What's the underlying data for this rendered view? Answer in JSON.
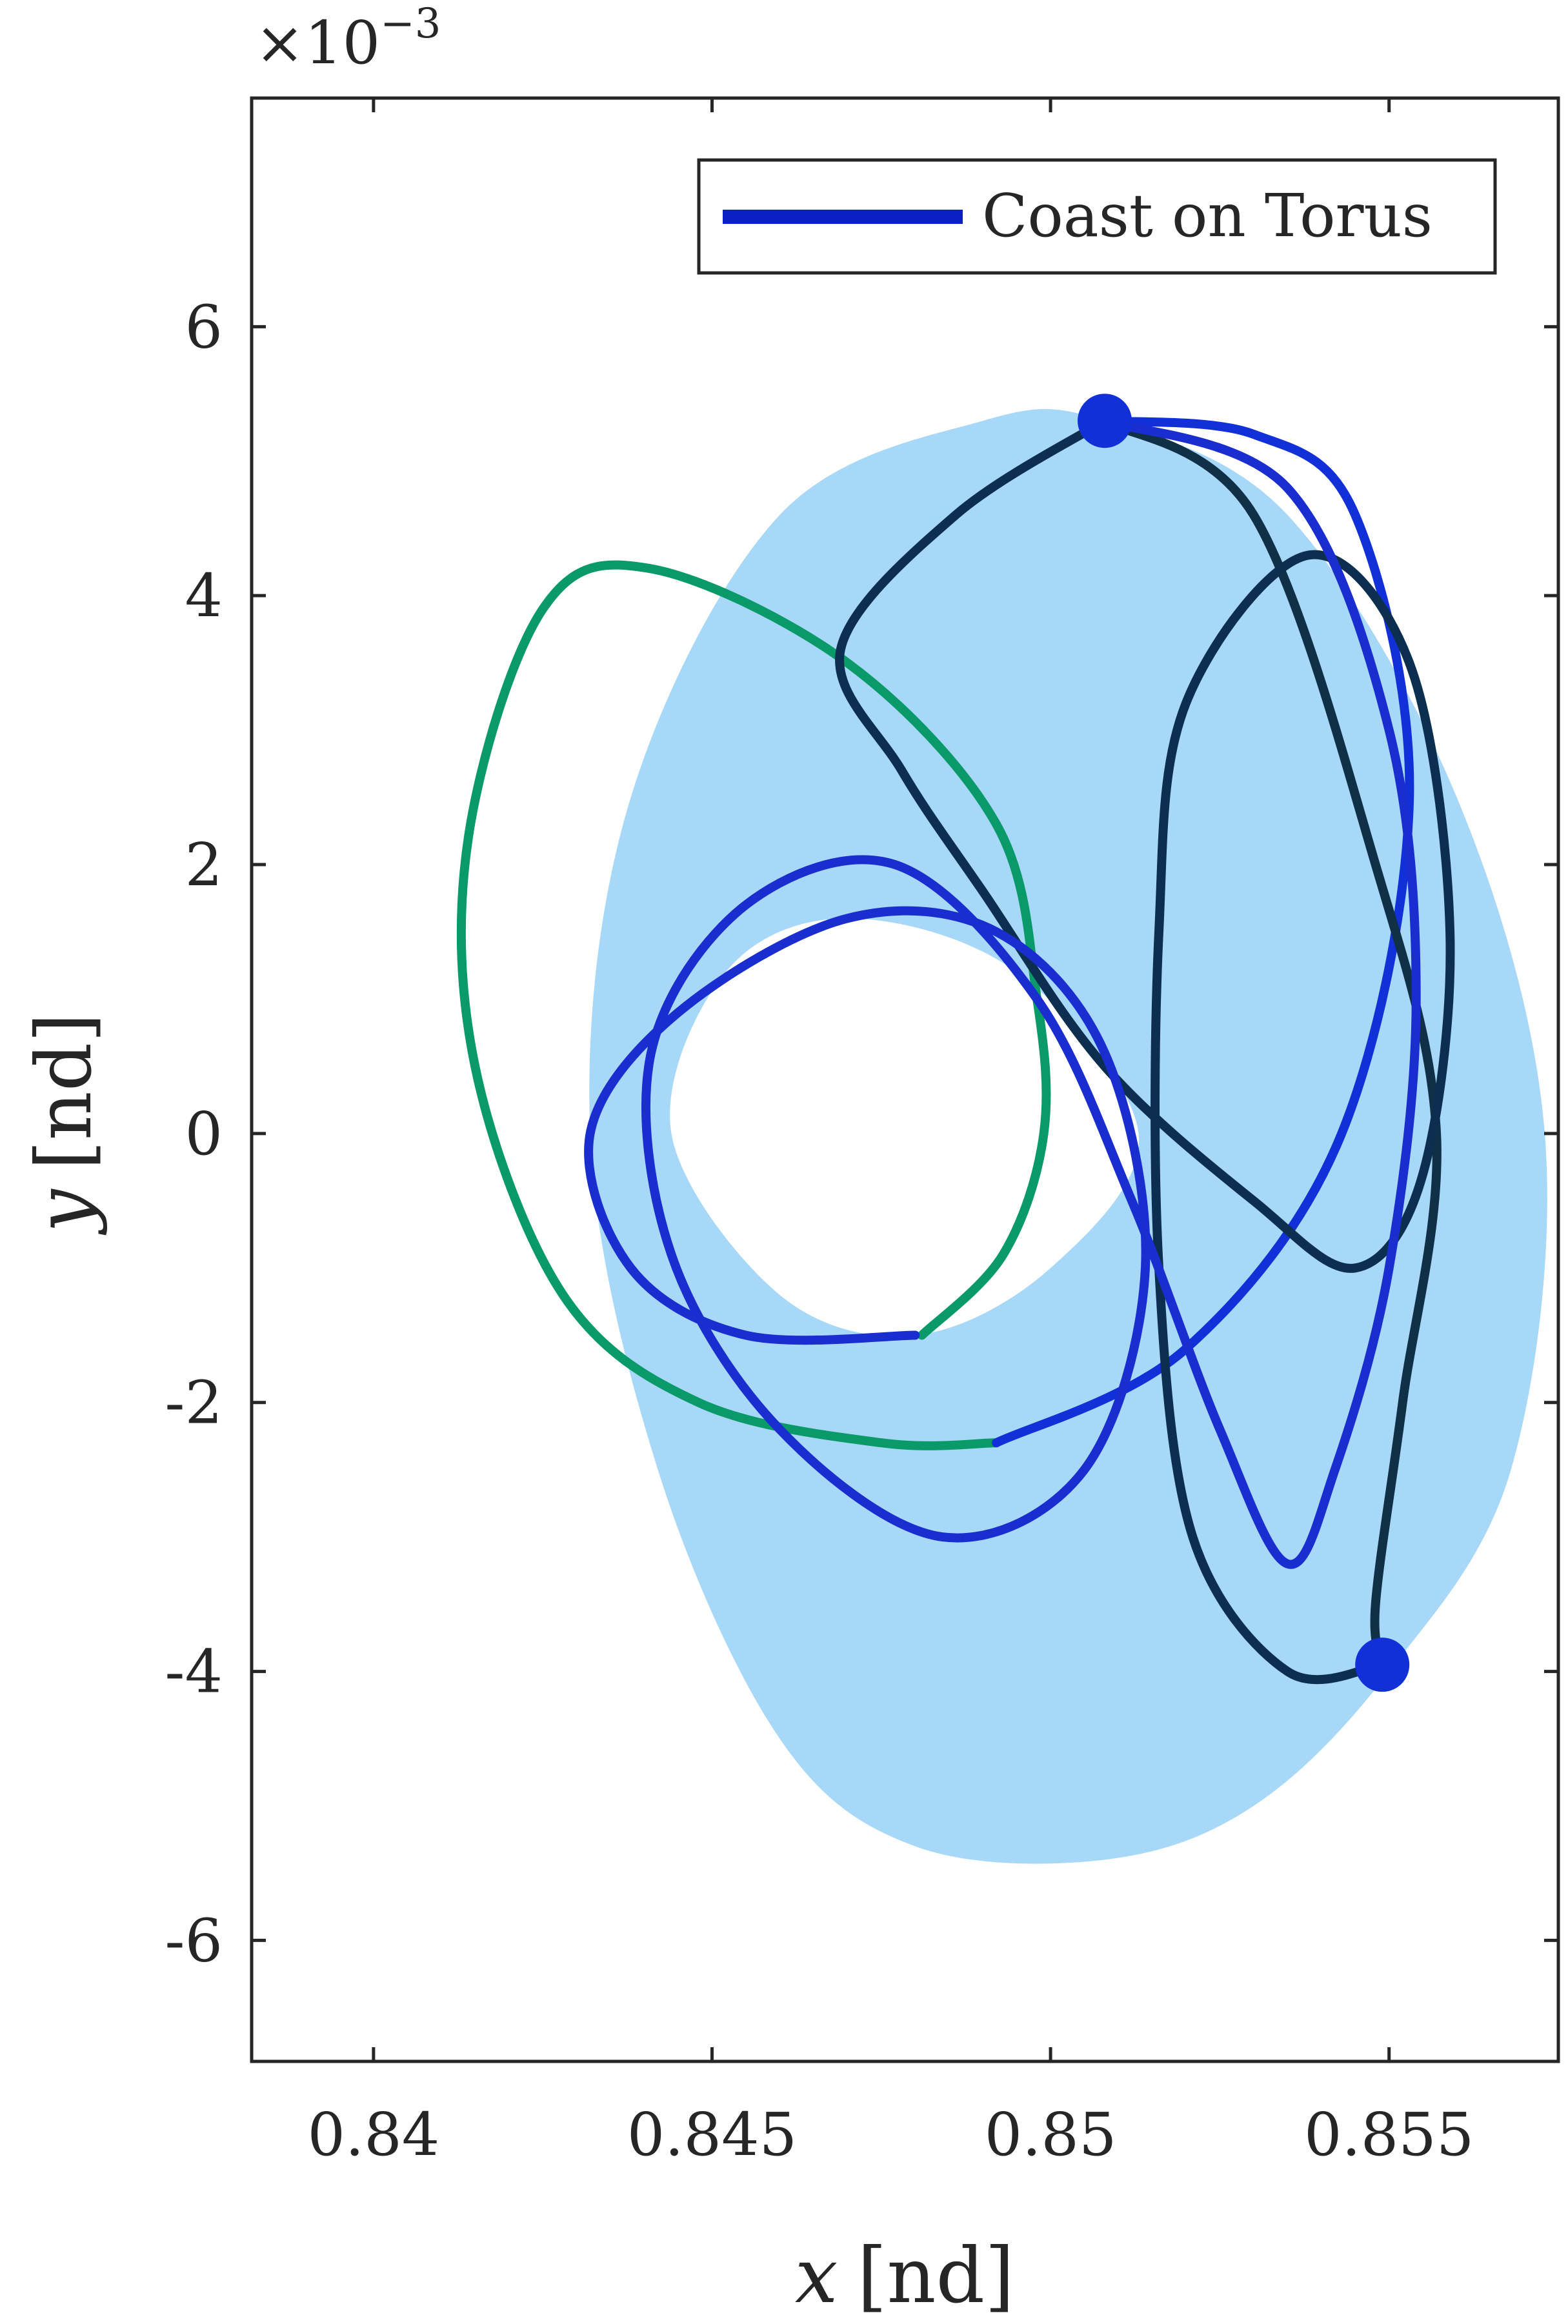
{
  "chart_data": {
    "type": "line",
    "xlabel_var": "x",
    "xlabel_unit": "[nd]",
    "ylabel_var": "y",
    "ylabel_unit": "[nd]",
    "y_multiplier_base": "×10",
    "y_multiplier_exp": "−3",
    "xlim": [
      0.8382,
      0.8575
    ],
    "ylim": [
      -6.9,
      7.7
    ],
    "x_ticks": [
      0.84,
      0.845,
      0.85,
      0.855
    ],
    "x_tick_labels": [
      "0.84",
      "0.845",
      "0.85",
      "0.855"
    ],
    "y_ticks": [
      6,
      4,
      2,
      0,
      -2,
      -4,
      -6
    ],
    "y_tick_labels": [
      "6",
      "4",
      "2",
      "0",
      "-2",
      "-4",
      "-6"
    ],
    "grid": false,
    "legend": {
      "placement": "top-right",
      "entries": [
        {
          "label": "Coast on Torus",
          "color": "#0a1fc4"
        }
      ]
    },
    "torus_color": "#a8d8f8",
    "torus_outer": [
      [
        0.8508,
        5.3
      ],
      [
        0.8535,
        4.6
      ],
      [
        0.856,
        2.5
      ],
      [
        0.8573,
        0
      ],
      [
        0.8568,
        -2.5
      ],
      [
        0.855,
        -4.0
      ],
      [
        0.853,
        -5.0
      ],
      [
        0.8508,
        -5.4
      ],
      [
        0.848,
        -5.3
      ],
      [
        0.846,
        -4.5
      ],
      [
        0.8442,
        -2.5
      ],
      [
        0.8432,
        0
      ],
      [
        0.8438,
        2.5
      ],
      [
        0.846,
        4.6
      ],
      [
        0.849,
        5.3
      ]
    ],
    "torus_inner": [
      [
        0.847,
        1.6
      ],
      [
        0.8495,
        1.2
      ],
      [
        0.8513,
        0
      ],
      [
        0.85,
        -1.0
      ],
      [
        0.848,
        -1.5
      ],
      [
        0.846,
        -1.2
      ],
      [
        0.8444,
        0
      ],
      [
        0.8452,
        1.2
      ]
    ],
    "series": [
      {
        "color": "#0a9a6a",
        "width": 14,
        "points": [
          [
            0.8481,
            -1.5
          ],
          [
            0.8493,
            -0.9
          ],
          [
            0.8499,
            0
          ],
          [
            0.8498,
            1.0
          ],
          [
            0.8492,
            2.3
          ],
          [
            0.847,
            3.5
          ],
          [
            0.8441,
            4.2
          ],
          [
            0.8425,
            3.9
          ],
          [
            0.8414,
            2.2
          ],
          [
            0.8415,
            0.5
          ],
          [
            0.8428,
            -1.2
          ],
          [
            0.8448,
            -2.0
          ],
          [
            0.8475,
            -2.3
          ],
          [
            0.8492,
            -2.3
          ]
        ]
      },
      {
        "color": "#1230d8",
        "width": 14,
        "points": [
          [
            0.8492,
            -2.3
          ],
          [
            0.852,
            -1.6
          ],
          [
            0.8543,
            0
          ],
          [
            0.8553,
            2.5
          ],
          [
            0.8545,
            4.6
          ],
          [
            0.853,
            5.2
          ],
          [
            0.8508,
            5.3
          ]
        ]
      },
      {
        "color": "#103048",
        "width": 14,
        "points": [
          [
            0.8508,
            5.3
          ],
          [
            0.853,
            4.6
          ],
          [
            0.8548,
            2.0
          ],
          [
            0.8557,
            0
          ],
          [
            0.8552,
            -2.0
          ],
          [
            0.8548,
            -3.5
          ],
          [
            0.8549,
            -3.95
          ]
        ]
      },
      {
        "color": "#0d2f4f",
        "width": 14,
        "points": [
          [
            0.8549,
            -3.95
          ],
          [
            0.8535,
            -4.0
          ],
          [
            0.8521,
            -3.0
          ],
          [
            0.8516,
            -1.0
          ],
          [
            0.8516,
            1.5
          ],
          [
            0.852,
            3.2
          ],
          [
            0.8538,
            4.3
          ],
          [
            0.8553,
            3.5
          ],
          [
            0.8559,
            1.5
          ],
          [
            0.8555,
            -0.3
          ],
          [
            0.8545,
            -1.0
          ],
          [
            0.853,
            -0.5
          ],
          [
            0.8508,
            0.5
          ],
          [
            0.849,
            1.8
          ],
          [
            0.8478,
            2.7
          ],
          [
            0.8469,
            3.6
          ],
          [
            0.8486,
            4.6
          ],
          [
            0.8508,
            5.3
          ]
        ]
      },
      {
        "color": "#1a2ed0",
        "width": 14,
        "points": [
          [
            0.8508,
            5.3
          ],
          [
            0.8535,
            4.8
          ],
          [
            0.855,
            3.0
          ],
          [
            0.8554,
            1.0
          ],
          [
            0.855,
            -1.0
          ],
          [
            0.8542,
            -2.5
          ],
          [
            0.8535,
            -3.2
          ],
          [
            0.8525,
            -2.2
          ],
          [
            0.8512,
            -0.5
          ],
          [
            0.8498,
            1.0
          ],
          [
            0.8477,
            2.0
          ],
          [
            0.8455,
            1.7
          ],
          [
            0.8441,
            0.6
          ],
          [
            0.8444,
            -0.9
          ],
          [
            0.846,
            -2.2
          ],
          [
            0.8484,
            -3.0
          ],
          [
            0.8505,
            -2.5
          ],
          [
            0.8514,
            -1.0
          ],
          [
            0.8508,
            0.6
          ],
          [
            0.8492,
            1.5
          ],
          [
            0.847,
            1.6
          ],
          [
            0.8445,
            0.9
          ],
          [
            0.8432,
            0
          ],
          [
            0.8438,
            -1.0
          ],
          [
            0.8455,
            -1.5
          ],
          [
            0.848,
            -1.5
          ]
        ]
      }
    ],
    "markers": [
      {
        "x": 0.8508,
        "y": 5.3,
        "color": "#1230d8"
      },
      {
        "x": 0.8549,
        "y": -3.95,
        "color": "#1230d8"
      }
    ]
  }
}
